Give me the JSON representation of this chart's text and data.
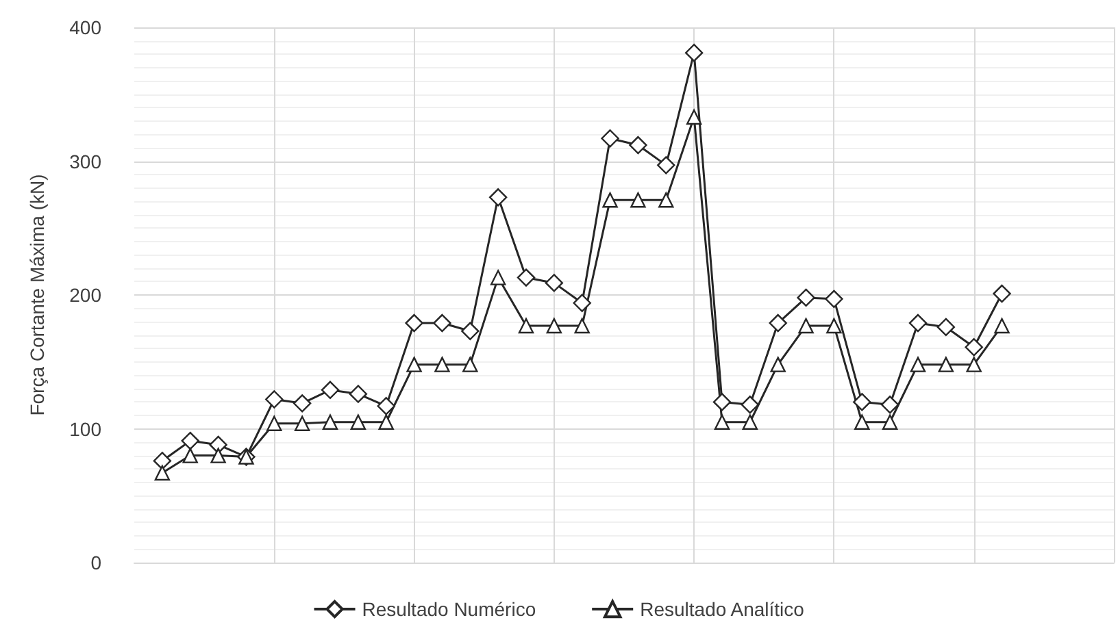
{
  "chart_data": {
    "type": "line",
    "ylabel": "Força Cortante Máxima (kN)",
    "categories": [
      null,
      null,
      null,
      null,
      null,
      null,
      null,
      null,
      null,
      null,
      null,
      null,
      null,
      null,
      null,
      null,
      null,
      null,
      null,
      null,
      null,
      null,
      null,
      null,
      null,
      null,
      null,
      null,
      null,
      null,
      null,
      null,
      null,
      null,
      null,
      null
    ],
    "series": [
      {
        "name": "Resultado Numérico",
        "color": "#262626",
        "marker": "diamond",
        "values": [
          null,
          76,
          91,
          88,
          79,
          122,
          119,
          129,
          126,
          117,
          179,
          179,
          173,
          273,
          213,
          209,
          194,
          317,
          312,
          297,
          381,
          120,
          118,
          179,
          198,
          197,
          120,
          118,
          179,
          176,
          161,
          201,
          null,
          null,
          null,
          null
        ]
      },
      {
        "name": "Resultado Analítico",
        "color": "#262626",
        "marker": "triangle",
        "values": [
          null,
          67,
          80,
          80,
          79,
          104,
          104,
          105,
          105,
          105,
          148,
          148,
          148,
          213,
          177,
          177,
          177,
          271,
          271,
          271,
          333,
          105,
          105,
          148,
          177,
          177,
          105,
          105,
          148,
          148,
          148,
          177,
          null,
          null,
          null,
          null
        ]
      }
    ],
    "ylim": [
      0,
      400
    ],
    "yticks": [
      0,
      100,
      200,
      300,
      400
    ],
    "grid": true,
    "legend": "bottom",
    "line_style": "solid"
  }
}
